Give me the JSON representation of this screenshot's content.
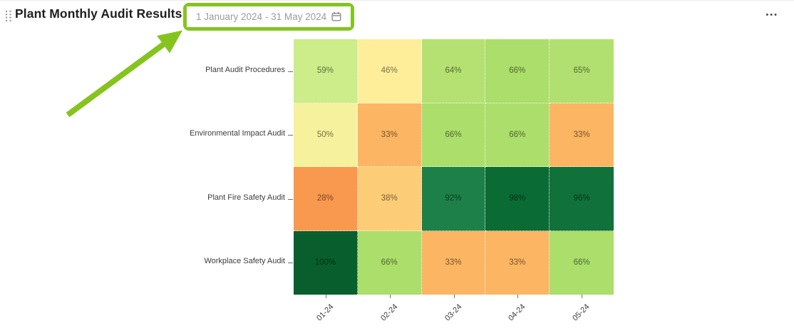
{
  "header": {
    "title": "Plant Monthly Audit Results",
    "date_range": "1 January 2024 - 31 May 2024",
    "more_options_glyph": "•••"
  },
  "annotation": {
    "color": "#85c41f"
  },
  "chart_data": {
    "type": "heatmap",
    "title": "Plant Monthly Audit Results",
    "columns": [
      "01-24",
      "02-24",
      "03-24",
      "04-24",
      "05-24"
    ],
    "rows": [
      "Plant Audit Procedures",
      "Environmental Impact Audit",
      "Plant Fire Safety Audit",
      "Workplace Safety Audit"
    ],
    "values": [
      [
        59,
        46,
        64,
        66,
        65
      ],
      [
        50,
        33,
        66,
        66,
        33
      ],
      [
        28,
        38,
        92,
        98,
        96
      ],
      [
        100,
        66,
        33,
        33,
        66
      ]
    ],
    "value_suffix": "%",
    "cell_colors": [
      [
        "#cdec8a",
        "#feee9a",
        "#b5e173",
        "#abde6b",
        "#b2e070"
      ],
      [
        "#f6f19c",
        "#fbb563",
        "#abde6b",
        "#abde6b",
        "#fbb563"
      ],
      [
        "#f9994f",
        "#fdcc76",
        "#1d8048",
        "#0b6b35",
        "#10713a"
      ],
      [
        "#085f2d",
        "#abde6b",
        "#fbb563",
        "#fbb563",
        "#abde6b"
      ]
    ],
    "legend": "none",
    "grid_lines": "dotted-white",
    "x_tick_rotation": -45
  }
}
